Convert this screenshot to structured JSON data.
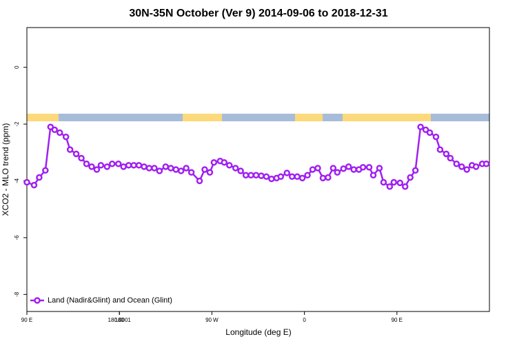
{
  "chart_data": {
    "type": "line",
    "title": "30N-35N October (Ver 9)   2014-09-06 to 2018-12-31",
    "x_label": "Longitude (deg E)",
    "y_label": "XCO2 - MLO trend (ppm)",
    "x": [
      90,
      97,
      102,
      108,
      113,
      117,
      122,
      128,
      132,
      138,
      143,
      148,
      153,
      158,
      162,
      168,
      173,
      179,
      184,
      189,
      194,
      199,
      204,
      209,
      214,
      219,
      225,
      230,
      235,
      240,
      245,
      250,
      258,
      263,
      268,
      272,
      278,
      282,
      287,
      293,
      298,
      303,
      308,
      313,
      318,
      323,
      328,
      333,
      337,
      343,
      348,
      353,
      358,
      363,
      368,
      373,
      378,
      383,
      388,
      392,
      398,
      403,
      408,
      413,
      417,
      423,
      427,
      433,
      437,
      443,
      447,
      453,
      458,
      463,
      468,
      473,
      478,
      482,
      488,
      492,
      498,
      502,
      508,
      513,
      518,
      523,
      527,
      533,
      537
    ],
    "series": [
      {
        "name": "Land (Nadir&Glint) and Ocean (Glint)",
        "color": "#a020f0",
        "values": [
          -4.05,
          -4.15,
          -3.88,
          -3.63,
          -2.1,
          -2.2,
          -2.3,
          -2.45,
          -2.9,
          -3.05,
          -3.2,
          -3.4,
          -3.5,
          -3.6,
          -3.45,
          -3.5,
          -3.4,
          -3.4,
          -3.5,
          -3.45,
          -3.45,
          -3.45,
          -3.5,
          -3.55,
          -3.55,
          -3.65,
          -3.5,
          -3.55,
          -3.6,
          -3.65,
          -3.55,
          -3.7,
          -4.0,
          -3.6,
          -3.7,
          -3.35,
          -3.3,
          -3.35,
          -3.45,
          -3.55,
          -3.65,
          -3.8,
          -3.8,
          -3.8,
          -3.82,
          -3.85,
          -3.93,
          -3.9,
          -3.85,
          -3.72,
          -3.85,
          -3.85,
          -3.9,
          -3.8,
          -3.6,
          -3.55,
          -3.9,
          -3.88,
          -3.55,
          -3.7,
          -3.57,
          -3.5,
          -3.6,
          -3.6,
          -3.52,
          -3.52,
          -3.8,
          -3.55,
          -4.05,
          -4.2,
          -4.05,
          -4.07,
          -4.2,
          -3.88,
          -3.63,
          -2.1,
          -2.2,
          -2.3,
          -2.45,
          -2.9,
          -3.05,
          -3.2,
          -3.4,
          -3.5,
          -3.6,
          -3.45,
          -3.5,
          -3.4,
          -3.4
        ]
      }
    ],
    "xlim": [
      90,
      540
    ],
    "xticks": [
      {
        "value": 90,
        "label": "90 E"
      },
      180,
      {
        "value": 270,
        "label": "90 W"
      },
      {
        "value": 360,
        "label": "0"
      },
      {
        "value": 450,
        "label": "90 E"
      },
      180.0001
    ],
    "ylim": [
      -8.6,
      1.4
    ],
    "yticks": [
      0,
      -2,
      -4,
      -6,
      -8
    ],
    "legend_position": "bottom-left"
  }
}
